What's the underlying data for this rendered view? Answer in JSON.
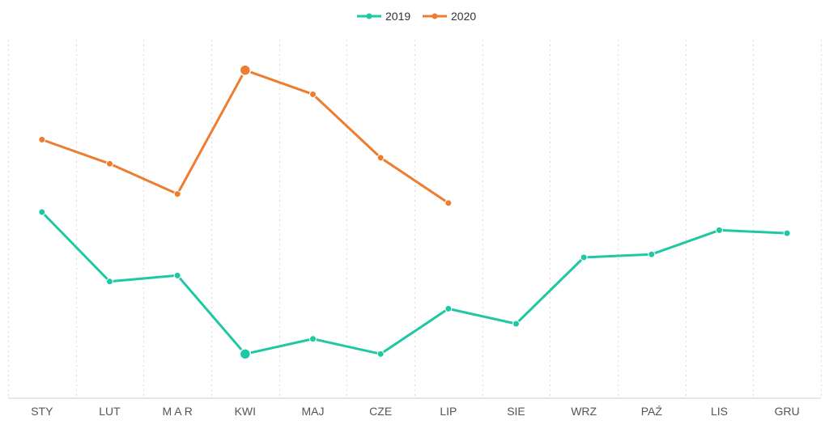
{
  "chart_data": {
    "type": "line",
    "title": "",
    "xlabel": "",
    "ylabel": "",
    "categories": [
      "STY",
      "LUT",
      "M A R",
      "KWI",
      "MAJ",
      "CZE",
      "LIP",
      "SIE",
      "WRZ",
      "PAŹ",
      "LIS",
      "GRU"
    ],
    "ylim": [
      0,
      100
    ],
    "grid": {
      "vertical": true,
      "horizontal": false
    },
    "legend": {
      "position": "top-center"
    },
    "series": [
      {
        "name": "2019",
        "color": "#1ec8a5",
        "values": [
          63,
          40,
          42,
          16,
          21,
          16,
          31,
          26,
          48,
          49,
          57,
          56
        ],
        "highlight_index": 3
      },
      {
        "name": "2020",
        "color": "#ed7d31",
        "values": [
          87,
          79,
          69,
          110,
          102,
          81,
          66,
          null,
          null,
          null,
          null,
          null
        ],
        "highlight_index": 3
      }
    ]
  }
}
